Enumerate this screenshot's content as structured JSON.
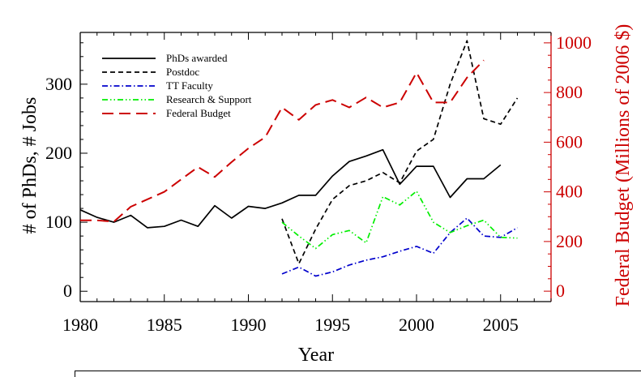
{
  "chart_data": {
    "type": "line",
    "xlabel": "Year",
    "ylabel": "# of PhDs, # Jobs",
    "y2label": "Federal Budget (Millions of 2006 $)",
    "xlim": [
      1980,
      2008
    ],
    "ylim": [
      -15,
      375
    ],
    "y2lim": [
      -42,
      1042
    ],
    "xticks": [
      1980,
      1985,
      1990,
      1995,
      2000,
      2005
    ],
    "yticks": [
      0,
      100,
      200,
      300
    ],
    "y2ticks": [
      0,
      200,
      400,
      600,
      800,
      1000
    ],
    "legend_position": "top-left",
    "colors": {
      "axis": "#000000",
      "right_axis": "#cc0000"
    },
    "series": [
      {
        "name": "PhDs awarded",
        "axis": "left",
        "color": "#000000",
        "style": "solid",
        "x": [
          1980,
          1981,
          1982,
          1983,
          1984,
          1985,
          1986,
          1987,
          1988,
          1989,
          1990,
          1991,
          1992,
          1993,
          1994,
          1995,
          1996,
          1997,
          1998,
          1999,
          2000,
          2001,
          2002,
          2003,
          2004,
          2005
        ],
        "values": [
          118,
          107,
          100,
          110,
          92,
          94,
          103,
          94,
          124,
          106,
          123,
          120,
          128,
          139,
          139,
          167,
          188,
          196,
          205,
          155,
          181,
          181,
          136,
          163,
          163,
          183
        ]
      },
      {
        "name": "Postdoc",
        "axis": "left",
        "color": "#000000",
        "style": "dashed",
        "x": [
          1992,
          1993,
          1994,
          1995,
          1996,
          1997,
          1998,
          1999,
          2000,
          2001,
          2002,
          2003,
          2004,
          2005,
          2006
        ],
        "values": [
          105,
          40,
          90,
          133,
          153,
          160,
          172,
          157,
          203,
          220,
          300,
          363,
          250,
          242,
          280
        ]
      },
      {
        "name": "TT Faculty",
        "axis": "left",
        "color": "#0000cc",
        "style": "dash-dot",
        "x": [
          1992,
          1993,
          1994,
          1995,
          1996,
          1997,
          1998,
          1999,
          2000,
          2001,
          2002,
          2003,
          2004,
          2005,
          2006
        ],
        "values": [
          25,
          35,
          22,
          28,
          38,
          45,
          50,
          58,
          65,
          55,
          85,
          106,
          80,
          78,
          92
        ]
      },
      {
        "name": "Research & Support",
        "axis": "left",
        "color": "#00ee00",
        "style": "dash-dot-dot",
        "x": [
          1992,
          1993,
          1994,
          1995,
          1996,
          1997,
          1998,
          1999,
          2000,
          2001,
          2002,
          2003,
          2004,
          2005,
          2006
        ],
        "values": [
          100,
          80,
          62,
          82,
          88,
          70,
          137,
          125,
          145,
          100,
          85,
          95,
          103,
          78,
          77
        ]
      },
      {
        "name": "Federal Budget",
        "axis": "right",
        "color": "#cc0000",
        "style": "long-dash",
        "x": [
          1980,
          1981,
          1982,
          1983,
          1984,
          1985,
          1986,
          1987,
          1988,
          1989,
          1990,
          1991,
          1992,
          1993,
          1994,
          1995,
          1996,
          1997,
          1998,
          1999,
          2000,
          2001,
          2002,
          2003,
          2004
        ],
        "values": [
          285,
          285,
          280,
          340,
          370,
          400,
          450,
          500,
          460,
          520,
          575,
          620,
          740,
          690,
          750,
          770,
          740,
          780,
          740,
          760,
          880,
          760,
          760,
          860,
          930
        ]
      }
    ]
  }
}
